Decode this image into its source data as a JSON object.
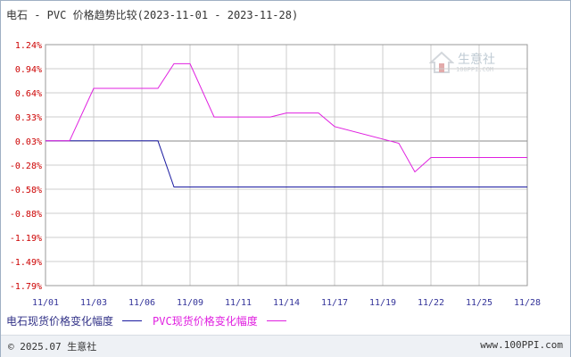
{
  "title": "电石 - PVC 价格趋势比较(2023-11-01 - 2023-11-28)",
  "logo": {
    "text": "生意社",
    "url": "100PPI.COM"
  },
  "footer": {
    "copyright": "© 2025.07 生意社",
    "site": "www.100PPI.com"
  },
  "colors": {
    "series1": "#1a1aa0",
    "series2": "#e020e0",
    "axis_text_y": "#cc0000",
    "axis_text_x": "#333399",
    "grid": "#bbbbbb"
  },
  "chart_data": {
    "type": "line",
    "ylabel_unit": "%",
    "ylim": [
      -1.79,
      1.24
    ],
    "y_ticks": [
      "1.24%",
      "0.94%",
      "0.64%",
      "0.33%",
      "0.03%",
      "-0.28%",
      "-0.58%",
      "-0.88%",
      "-1.19%",
      "-1.49%",
      "-1.79%"
    ],
    "x_ticks": [
      "11/01",
      "11/03",
      "11/06",
      "11/09",
      "11/11",
      "11/14",
      "11/17",
      "11/19",
      "11/22",
      "11/25",
      "11/28"
    ],
    "x": [
      "11/01",
      "11/02",
      "11/03",
      "11/06",
      "11/07",
      "11/08",
      "11/09",
      "11/10",
      "11/13",
      "11/14",
      "11/15",
      "11/16",
      "11/17",
      "11/20",
      "11/21",
      "11/22",
      "11/23",
      "11/24",
      "11/27",
      "11/28"
    ],
    "series": [
      {
        "name": "电石现货价格变化幅度",
        "color": "#1a1aa0",
        "values": [
          0.03,
          0.03,
          0.03,
          0.03,
          0.03,
          -0.55,
          -0.55,
          -0.55,
          -0.55,
          -0.55,
          -0.55,
          -0.55,
          -0.55,
          -0.55,
          -0.55,
          -0.55,
          -0.55,
          -0.55,
          -0.55,
          -0.55
        ]
      },
      {
        "name": "PVC现货价格变化幅度",
        "color": "#e020e0",
        "values": [
          0.03,
          0.03,
          0.69,
          0.69,
          0.69,
          1.0,
          1.0,
          0.33,
          0.33,
          0.38,
          0.38,
          0.38,
          0.21,
          0.0,
          -0.36,
          -0.18,
          -0.18,
          -0.18,
          -0.18,
          -0.18
        ]
      }
    ]
  }
}
